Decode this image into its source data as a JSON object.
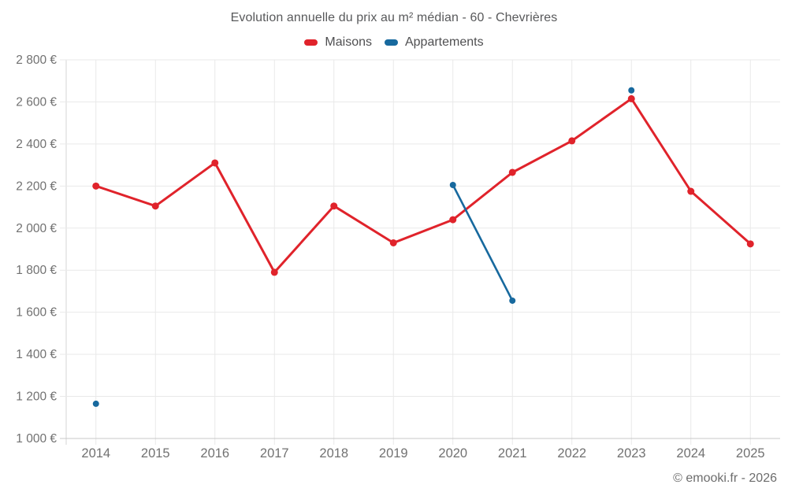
{
  "header": {
    "title": "Evolution annuelle du prix au m² médian - 60 - Chevrières"
  },
  "legend": {
    "items": [
      {
        "label": "Maisons",
        "color": "#e0232b"
      },
      {
        "label": "Appartements",
        "color": "#17699e"
      }
    ]
  },
  "footer": {
    "credit": "© emooki.fr - 2026"
  },
  "chart_data": {
    "type": "line",
    "title": "Evolution annuelle du prix au m² médian - 60 - Chevrières",
    "categories": [
      "2014",
      "2015",
      "2016",
      "2017",
      "2018",
      "2019",
      "2020",
      "2021",
      "2022",
      "2023",
      "2024",
      "2025"
    ],
    "series": [
      {
        "name": "Maisons",
        "color": "#e0232b",
        "values": [
          2200,
          2105,
          2310,
          1790,
          2105,
          1930,
          2040,
          2265,
          2415,
          2615,
          2175,
          1925
        ]
      },
      {
        "name": "Appartements",
        "color": "#17699e",
        "values": [
          1165,
          null,
          null,
          null,
          null,
          null,
          2205,
          1655,
          null,
          2655,
          null,
          null
        ]
      }
    ],
    "ylim": [
      1000,
      2800
    ],
    "ytick_step": 200,
    "y_suffix": " €",
    "grid": true,
    "legend_position": "top",
    "colors": {
      "grid": "#e9e9e9",
      "axis_y": "#d6d6d6",
      "axis_x": "#c8c8c8",
      "axis_text": "#717171"
    }
  }
}
